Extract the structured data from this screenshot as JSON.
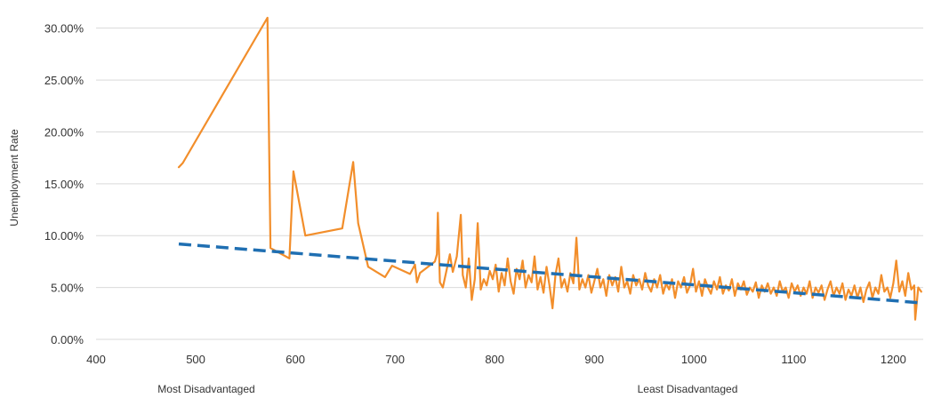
{
  "chart_data": {
    "type": "line",
    "title": "",
    "xlabel": "",
    "ylabel": "Unemployment Rate",
    "xlim": [
      400,
      1230
    ],
    "ylim": [
      0,
      0.31
    ],
    "x_ticks": [
      "400",
      "500",
      "600",
      "700",
      "800",
      "900",
      "1000",
      "1100",
      "1200"
    ],
    "x_tick_values": [
      400,
      500,
      600,
      700,
      800,
      900,
      1000,
      1100,
      1200
    ],
    "y_ticks": [
      "0.00%",
      "5.00%",
      "10.00%",
      "15.00%",
      "20.00%",
      "25.00%",
      "30.00%"
    ],
    "y_tick_values": [
      0,
      0.05,
      0.1,
      0.15,
      0.2,
      0.25,
      0.3
    ],
    "grid": true,
    "x_end_labels": {
      "left": "Most Disadvantaged",
      "right": "Least Disadvantaged"
    },
    "series": [
      {
        "color": "#f28e2b",
        "style": "solid",
        "points": [
          [
            483,
            0.166
          ],
          [
            487,
            0.17
          ],
          [
            572,
            0.31
          ],
          [
            575,
            0.088
          ],
          [
            594,
            0.078
          ],
          [
            598,
            0.162
          ],
          [
            610,
            0.1
          ],
          [
            647,
            0.107
          ],
          [
            658,
            0.171
          ],
          [
            663,
            0.112
          ],
          [
            673,
            0.07
          ],
          [
            690,
            0.06
          ],
          [
            697,
            0.071
          ],
          [
            715,
            0.063
          ],
          [
            720,
            0.072
          ],
          [
            722,
            0.055
          ],
          [
            725,
            0.064
          ],
          [
            740,
            0.075
          ],
          [
            742,
            0.082
          ],
          [
            743,
            0.122
          ],
          [
            745,
            0.055
          ],
          [
            748,
            0.05
          ],
          [
            752,
            0.068
          ],
          [
            755,
            0.082
          ],
          [
            758,
            0.065
          ],
          [
            762,
            0.08
          ],
          [
            766,
            0.12
          ],
          [
            768,
            0.062
          ],
          [
            771,
            0.05
          ],
          [
            774,
            0.078
          ],
          [
            777,
            0.038
          ],
          [
            780,
            0.058
          ],
          [
            783,
            0.112
          ],
          [
            786,
            0.048
          ],
          [
            789,
            0.058
          ],
          [
            792,
            0.052
          ],
          [
            795,
            0.066
          ],
          [
            798,
            0.058
          ],
          [
            801,
            0.072
          ],
          [
            804,
            0.046
          ],
          [
            807,
            0.064
          ],
          [
            810,
            0.052
          ],
          [
            813,
            0.078
          ],
          [
            816,
            0.056
          ],
          [
            819,
            0.044
          ],
          [
            822,
            0.068
          ],
          [
            825,
            0.058
          ],
          [
            828,
            0.076
          ],
          [
            831,
            0.05
          ],
          [
            834,
            0.062
          ],
          [
            837,
            0.055
          ],
          [
            840,
            0.08
          ],
          [
            843,
            0.048
          ],
          [
            846,
            0.06
          ],
          [
            849,
            0.045
          ],
          [
            852,
            0.07
          ],
          [
            855,
            0.052
          ],
          [
            858,
            0.03
          ],
          [
            861,
            0.062
          ],
          [
            864,
            0.078
          ],
          [
            867,
            0.05
          ],
          [
            870,
            0.058
          ],
          [
            873,
            0.046
          ],
          [
            876,
            0.064
          ],
          [
            879,
            0.054
          ],
          [
            882,
            0.098
          ],
          [
            885,
            0.048
          ],
          [
            888,
            0.058
          ],
          [
            891,
            0.05
          ],
          [
            894,
            0.062
          ],
          [
            897,
            0.045
          ],
          [
            900,
            0.056
          ],
          [
            903,
            0.068
          ],
          [
            906,
            0.05
          ],
          [
            909,
            0.058
          ],
          [
            912,
            0.042
          ],
          [
            915,
            0.062
          ],
          [
            918,
            0.052
          ],
          [
            921,
            0.06
          ],
          [
            924,
            0.046
          ],
          [
            927,
            0.07
          ],
          [
            930,
            0.05
          ],
          [
            933,
            0.056
          ],
          [
            936,
            0.044
          ],
          [
            939,
            0.062
          ],
          [
            942,
            0.052
          ],
          [
            945,
            0.058
          ],
          [
            948,
            0.048
          ],
          [
            951,
            0.064
          ],
          [
            954,
            0.052
          ],
          [
            957,
            0.046
          ],
          [
            960,
            0.058
          ],
          [
            963,
            0.05
          ],
          [
            966,
            0.062
          ],
          [
            969,
            0.044
          ],
          [
            972,
            0.054
          ],
          [
            975,
            0.048
          ],
          [
            978,
            0.058
          ],
          [
            981,
            0.04
          ],
          [
            984,
            0.056
          ],
          [
            987,
            0.05
          ],
          [
            990,
            0.06
          ],
          [
            993,
            0.045
          ],
          [
            996,
            0.052
          ],
          [
            999,
            0.068
          ],
          [
            1002,
            0.046
          ],
          [
            1005,
            0.056
          ],
          [
            1008,
            0.042
          ],
          [
            1011,
            0.058
          ],
          [
            1014,
            0.05
          ],
          [
            1017,
            0.044
          ],
          [
            1020,
            0.056
          ],
          [
            1023,
            0.048
          ],
          [
            1026,
            0.06
          ],
          [
            1029,
            0.044
          ],
          [
            1032,
            0.052
          ],
          [
            1035,
            0.047
          ],
          [
            1038,
            0.058
          ],
          [
            1041,
            0.042
          ],
          [
            1044,
            0.054
          ],
          [
            1047,
            0.048
          ],
          [
            1050,
            0.056
          ],
          [
            1053,
            0.043
          ],
          [
            1056,
            0.05
          ],
          [
            1059,
            0.046
          ],
          [
            1062,
            0.055
          ],
          [
            1065,
            0.04
          ],
          [
            1068,
            0.052
          ],
          [
            1071,
            0.046
          ],
          [
            1074,
            0.054
          ],
          [
            1077,
            0.044
          ],
          [
            1080,
            0.05
          ],
          [
            1083,
            0.042
          ],
          [
            1086,
            0.056
          ],
          [
            1089,
            0.046
          ],
          [
            1092,
            0.05
          ],
          [
            1095,
            0.04
          ],
          [
            1098,
            0.054
          ],
          [
            1101,
            0.046
          ],
          [
            1104,
            0.052
          ],
          [
            1107,
            0.042
          ],
          [
            1110,
            0.05
          ],
          [
            1113,
            0.044
          ],
          [
            1116,
            0.056
          ],
          [
            1119,
            0.04
          ],
          [
            1122,
            0.05
          ],
          [
            1125,
            0.045
          ],
          [
            1128,
            0.052
          ],
          [
            1131,
            0.038
          ],
          [
            1134,
            0.048
          ],
          [
            1137,
            0.056
          ],
          [
            1140,
            0.042
          ],
          [
            1143,
            0.05
          ],
          [
            1146,
            0.044
          ],
          [
            1149,
            0.054
          ],
          [
            1152,
            0.038
          ],
          [
            1155,
            0.048
          ],
          [
            1158,
            0.042
          ],
          [
            1161,
            0.052
          ],
          [
            1164,
            0.04
          ],
          [
            1167,
            0.05
          ],
          [
            1170,
            0.036
          ],
          [
            1173,
            0.048
          ],
          [
            1176,
            0.055
          ],
          [
            1179,
            0.04
          ],
          [
            1182,
            0.05
          ],
          [
            1185,
            0.044
          ],
          [
            1188,
            0.062
          ],
          [
            1191,
            0.046
          ],
          [
            1194,
            0.05
          ],
          [
            1197,
            0.04
          ],
          [
            1200,
            0.054
          ],
          [
            1203,
            0.076
          ],
          [
            1206,
            0.046
          ],
          [
            1209,
            0.056
          ],
          [
            1212,
            0.042
          ],
          [
            1215,
            0.064
          ],
          [
            1218,
            0.048
          ],
          [
            1221,
            0.052
          ],
          [
            1222,
            0.019
          ],
          [
            1225,
            0.05
          ],
          [
            1228,
            0.046
          ]
        ]
      },
      {
        "color": "#1f6fb2",
        "style": "dashed",
        "points": [
          [
            483,
            0.092
          ],
          [
            1230,
            0.035
          ]
        ]
      }
    ]
  }
}
